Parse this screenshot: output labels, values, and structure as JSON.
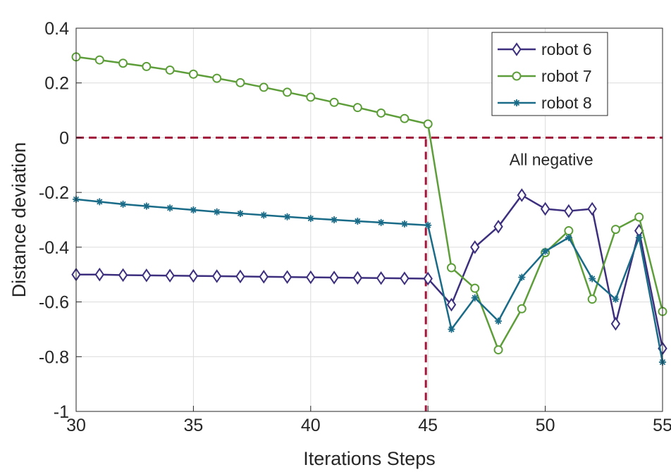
{
  "chart_data": {
    "type": "line",
    "title": "",
    "xlabel": "Iterations Steps",
    "ylabel": "Distance deviation",
    "xlim": [
      30,
      55
    ],
    "ylim": [
      -1,
      0.4
    ],
    "xticks": [
      30,
      35,
      40,
      45,
      50,
      55
    ],
    "yticks": [
      -1,
      -0.8,
      -0.6,
      -0.4,
      -0.2,
      0,
      0.2,
      0.4
    ],
    "xtick_labels": [
      "30",
      "35",
      "40",
      "45",
      "50",
      "55"
    ],
    "ytick_labels": [
      "-1",
      "-0.8",
      "-0.6",
      "-0.4",
      "-0.2",
      "0",
      "0.2",
      "0.4"
    ],
    "grid": true,
    "legend_position": "top-right",
    "x": [
      30,
      31,
      32,
      33,
      34,
      35,
      36,
      37,
      38,
      39,
      40,
      41,
      42,
      43,
      44,
      45,
      46,
      47,
      48,
      49,
      50,
      51,
      52,
      53,
      54,
      55
    ],
    "series": [
      {
        "name": "robot 6",
        "color": "#3D2F7E",
        "marker": "diamond",
        "values": [
          -0.5,
          -0.5,
          -0.502,
          -0.503,
          -0.504,
          -0.505,
          -0.506,
          -0.507,
          -0.508,
          -0.509,
          -0.51,
          -0.511,
          -0.512,
          -0.513,
          -0.514,
          -0.515,
          -0.61,
          -0.4,
          -0.325,
          -0.21,
          -0.26,
          -0.268,
          -0.26,
          -0.68,
          -0.34,
          -0.77
        ]
      },
      {
        "name": "robot 7",
        "color": "#5E9E3A",
        "marker": "circle",
        "values": [
          0.295,
          0.284,
          0.272,
          0.26,
          0.247,
          0.232,
          0.217,
          0.201,
          0.184,
          0.166,
          0.148,
          0.129,
          0.11,
          0.09,
          0.07,
          0.05,
          -0.475,
          -0.55,
          -0.775,
          -0.625,
          -0.42,
          -0.34,
          -0.59,
          -0.335,
          -0.29,
          -0.635
        ]
      },
      {
        "name": "robot 8",
        "color": "#196B87",
        "marker": "asterisk",
        "values": [
          -0.225,
          -0.234,
          -0.243,
          -0.25,
          -0.257,
          -0.264,
          -0.271,
          -0.277,
          -0.283,
          -0.289,
          -0.295,
          -0.3,
          -0.305,
          -0.31,
          -0.315,
          -0.32,
          -0.7,
          -0.585,
          -0.67,
          -0.51,
          -0.415,
          -0.365,
          -0.515,
          -0.59,
          -0.365,
          -0.82
        ]
      }
    ],
    "reference_lines": [
      {
        "orientation": "horizontal",
        "value": 0,
        "color": "#A0173A",
        "style": "dashed"
      },
      {
        "orientation": "vertical",
        "value": 45,
        "color": "#A0173A",
        "style": "dashed"
      }
    ],
    "annotations": [
      {
        "text": "All negative",
        "x": 50.2,
        "y": -0.08
      }
    ]
  }
}
